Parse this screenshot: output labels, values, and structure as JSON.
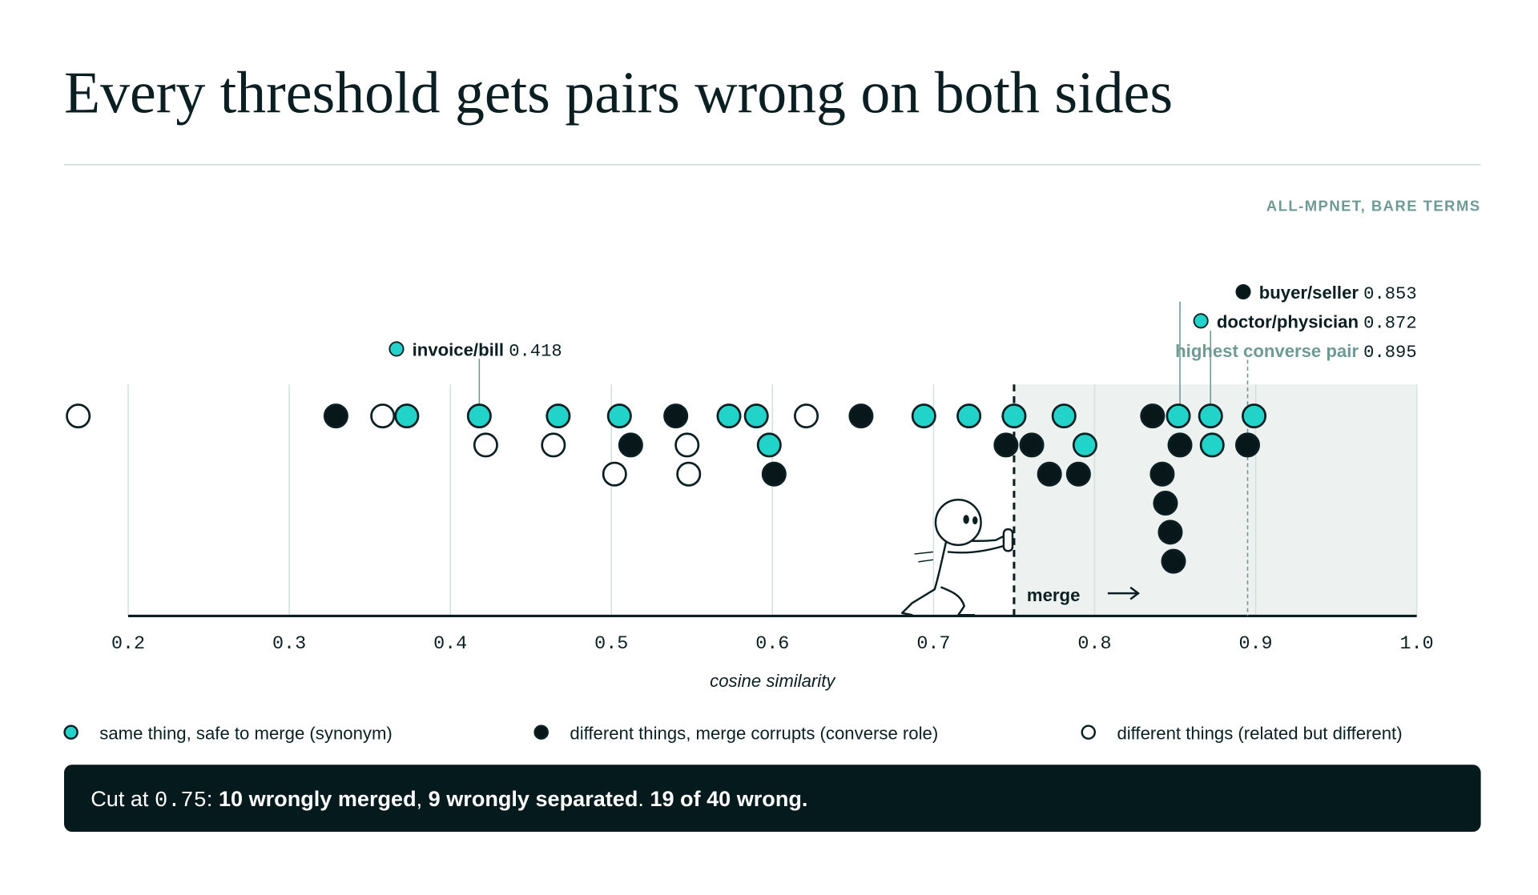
{
  "chart_data": {
    "type": "strip",
    "title": "Every threshold gets pairs wrong on both sides",
    "subtitle": "ALL-MPNET, BARE TERMS",
    "xlabel": "cosine similarity",
    "xlim": [
      0.2,
      1.0
    ],
    "xticks": [
      0.2,
      0.3,
      0.4,
      0.5,
      0.6,
      0.7,
      0.8,
      0.9,
      {
        "value": 1,
        "label": "1.0"
      }
    ],
    "grid": true,
    "threshold": 0.75,
    "threshold_label": "merge",
    "series": [
      {
        "name": "same thing, safe to merge (synonym)",
        "color": "#22d3c9",
        "values": [
          0.373,
          0.418,
          0.573,
          0.59,
          0.694,
          0.722,
          0.781,
          0.872,
          0.467,
          0.505,
          0.598,
          0.75,
          0.873,
          0.899,
          0.794,
          0.852
        ]
      },
      {
        "name": "different things, merge corrupts (converse role)",
        "color": "#08181a",
        "values": [
          0.329,
          0.54,
          0.655,
          0.745,
          0.761,
          0.836,
          0.853,
          0.895,
          0.772,
          0.79,
          0.842,
          0.512,
          0.601,
          0.844,
          0.847,
          0.849
        ]
      },
      {
        "name": "different things (related but different)",
        "color": "#ffffff",
        "values": [
          0.169,
          0.358,
          0.464,
          0.502,
          0.621,
          0.422,
          0.547,
          0.548
        ]
      }
    ],
    "annotations": [
      {
        "label": "invoice/bill",
        "value": 0.418,
        "marker": "#22d3c9"
      },
      {
        "label": "buyer/seller",
        "value": 0.853,
        "marker": "#08181a"
      },
      {
        "label": "doctor/physician",
        "value": 0.872,
        "marker": "#22d3c9"
      },
      {
        "label": "highest converse pair",
        "value": 0.895
      }
    ],
    "summary": {
      "prefix": "Cut at",
      "parts": [
        {
          "text": ": "
        },
        {
          "text": "10 wrongly merged",
          "bold": true
        },
        {
          "text": ", "
        },
        {
          "text": "9 wrongly separated",
          "bold": true
        },
        {
          "text": ". "
        },
        {
          "text": "19 of 40 wrong.",
          "bold": true
        }
      ]
    }
  }
}
